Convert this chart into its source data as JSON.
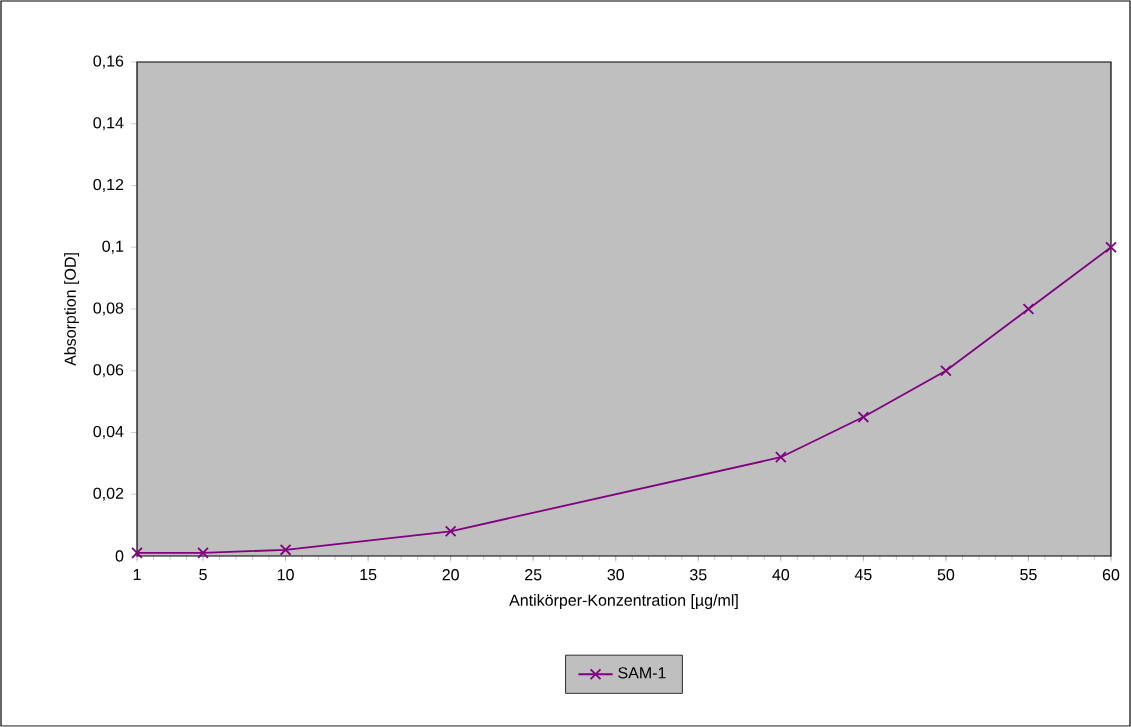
{
  "chart_data": {
    "type": "line",
    "xlabel": "Antikörper-Konzentration [µg/ml]",
    "ylabel": "Absorption [OD]",
    "x": [
      1,
      5,
      10,
      20,
      40,
      45,
      50,
      55,
      60
    ],
    "series": [
      {
        "name": "SAM-1",
        "color": "#800080",
        "values": [
          0.001,
          0.001,
          0.002,
          0.008,
          0.032,
          0.045,
          0.06,
          0.08,
          0.1
        ]
      }
    ],
    "xlim": [
      1,
      60
    ],
    "xticks": [
      1,
      5,
      10,
      15,
      20,
      25,
      30,
      35,
      40,
      45,
      50,
      55,
      60
    ],
    "ylim": [
      0,
      0.16
    ],
    "yticks": [
      0,
      {
        "value": 0.02,
        "label": "0,02"
      },
      {
        "value": 0.04,
        "label": "0,04"
      },
      {
        "value": 0.06,
        "label": "0,06"
      },
      {
        "value": 0.08,
        "label": "0,08"
      },
      {
        "value": 0.1,
        "label": "0,1"
      },
      {
        "value": 0.12,
        "label": "0,12"
      },
      {
        "value": 0.14,
        "label": "0,14"
      },
      {
        "value": 0.16,
        "label": "0,16"
      }
    ],
    "grid": false,
    "legend": "bottom",
    "marker": "cross",
    "line_style": "solid"
  }
}
